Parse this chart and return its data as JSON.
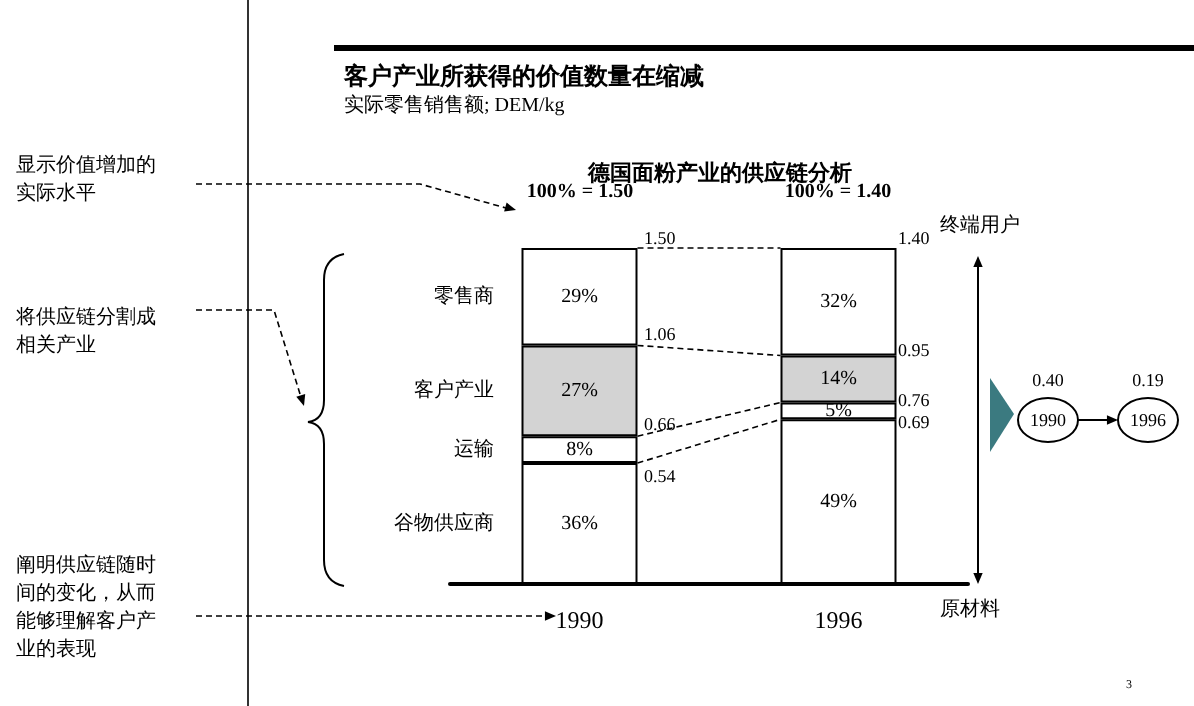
{
  "chart_data": {
    "type": "bar",
    "stacked": true,
    "title": "客户产业所获得的价值数量在缩减",
    "subtitle": "实际零售销售额; DEM/kg",
    "categories": [
      "1990",
      "1996"
    ],
    "series": [
      {
        "name": "谷物供应商",
        "color": "#ffffff",
        "values": [
          36,
          49
        ],
        "value_labels": [
          "36%",
          "49%"
        ]
      },
      {
        "name": "运输",
        "color": "#ffffff",
        "values": [
          8,
          5
        ],
        "value_labels": [
          "8%",
          "5%"
        ]
      },
      {
        "name": "客户产业",
        "color": "#d3d3d3",
        "values": [
          27,
          14
        ],
        "value_labels": [
          "27%",
          "14%"
        ]
      },
      {
        "name": "零售商",
        "color": "#ffffff",
        "values": [
          29,
          32
        ],
        "value_labels": [
          "29%",
          "32%"
        ]
      }
    ],
    "annotations": [
      "德国面粉产业的供应链分析",
      "显示价值增加的实际水平",
      "将供应链分割成相关产业",
      "阐明供应链随时间的变化，从而能够理解客户产业的表现",
      "终端用户",
      "原材料",
      "0.40",
      "0.19",
      "1990",
      "1996",
      "3",
      "100% = 1.50",
      "100% = 1.40",
      "1.50",
      "1.06",
      "0.66",
      "0.54",
      "1.40",
      "0.95",
      "0.76",
      "0.69"
    ],
    "legend": false,
    "grid": false
  }
}
